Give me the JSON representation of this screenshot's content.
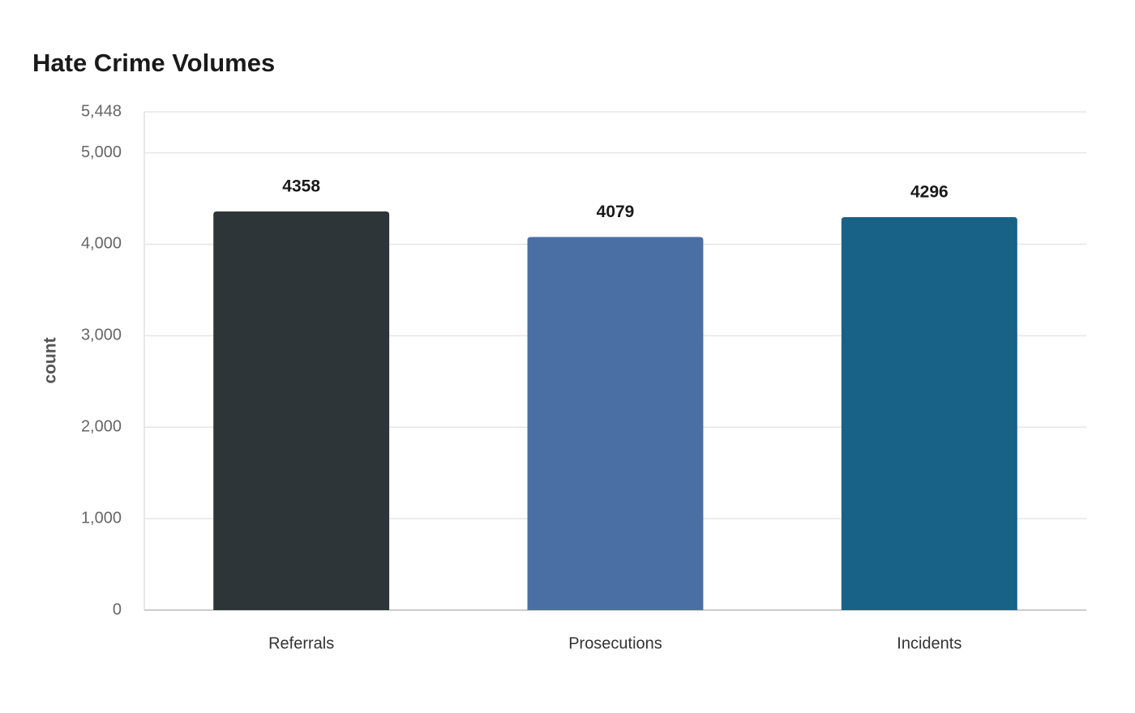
{
  "chart_data": {
    "type": "bar",
    "title": "Hate Crime Volumes",
    "y_label": "count",
    "categories": [
      "Referrals",
      "Prosecutions",
      "Incidents"
    ],
    "values": [
      4358,
      4079,
      4296
    ],
    "colors": [
      "#2e3538",
      "#4a6fa5",
      "#186287"
    ],
    "ylim": [
      0,
      5448
    ],
    "yticks": [
      0,
      {
        "value": 1000,
        "label": "1,000"
      },
      {
        "value": 2000,
        "label": "2,000"
      },
      {
        "value": 3000,
        "label": "3,000"
      },
      {
        "value": 4000,
        "label": "4,000"
      },
      {
        "value": 5000,
        "label": "5,000"
      },
      {
        "value": 5448,
        "label": "5,448"
      }
    ],
    "grid": true
  }
}
